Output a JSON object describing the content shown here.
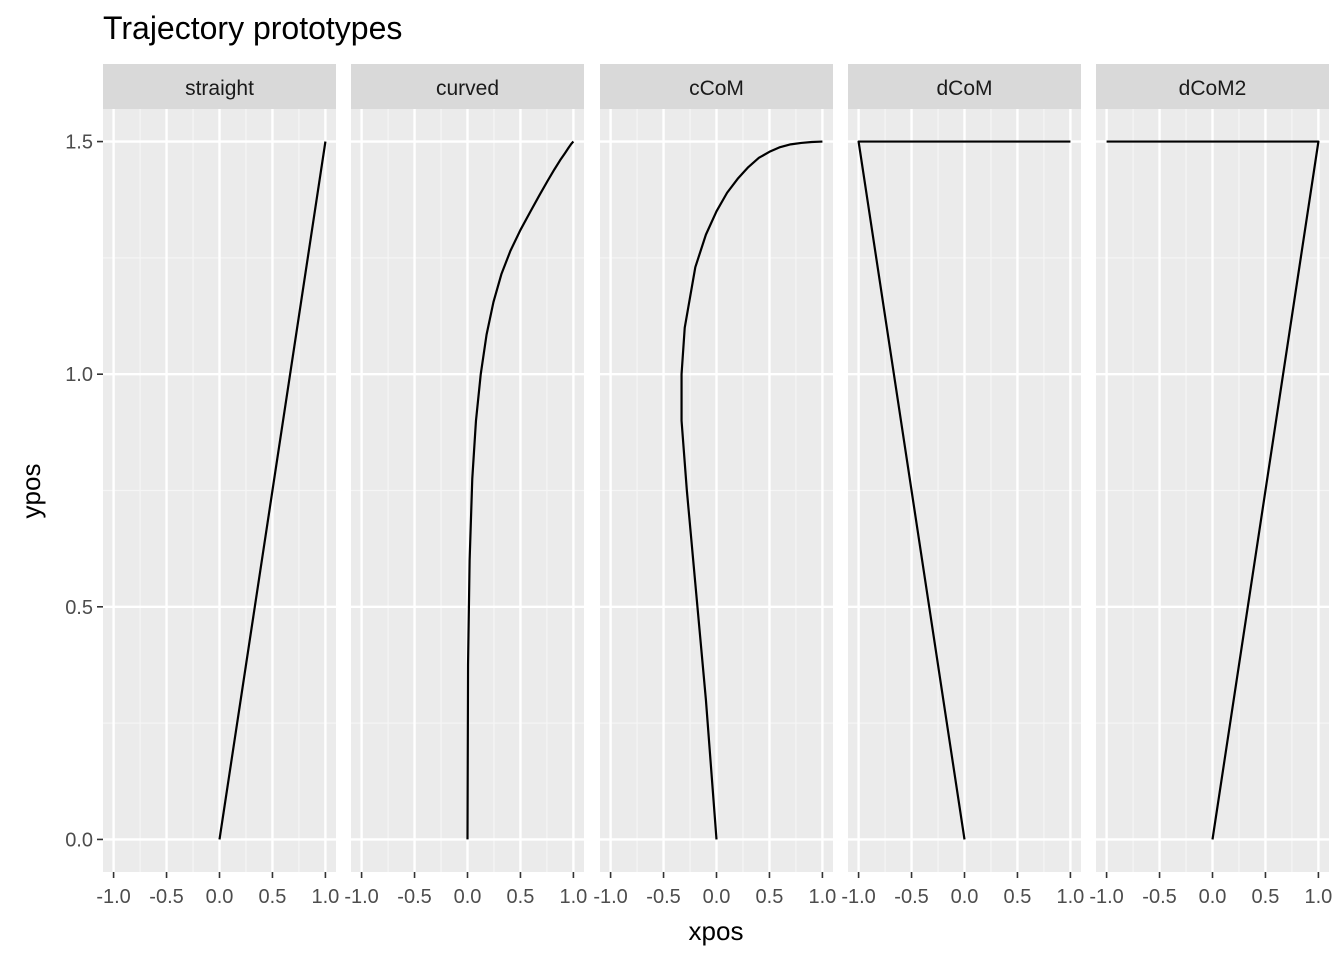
{
  "chart_data": {
    "type": "line",
    "title": "Trajectory prototypes",
    "xlabel": "xpos",
    "ylabel": "ypos",
    "xlim": [
      -1.1,
      1.1
    ],
    "ylim": [
      -0.07,
      1.57
    ],
    "x_ticks": [
      -1.0,
      -0.5,
      0.0,
      0.5,
      1.0
    ],
    "x_tick_labels": [
      "-1.0",
      "-0.5",
      "0.0",
      "0.5",
      "1.0"
    ],
    "y_ticks": [
      0.0,
      0.5,
      1.0,
      1.5
    ],
    "y_tick_labels": [
      "0.0",
      "0.5",
      "1.0",
      "1.5"
    ],
    "grid": true,
    "panels": [
      {
        "name": "straight",
        "x": [
          0.0,
          1.0
        ],
        "y": [
          0.0,
          1.5
        ]
      },
      {
        "name": "curved",
        "x": [
          0.0,
          0.005,
          0.02,
          0.045,
          0.08,
          0.125,
          0.18,
          0.245,
          0.32,
          0.405,
          0.5,
          0.595,
          0.68,
          0.755,
          0.82,
          0.875,
          0.92,
          0.955,
          0.98,
          0.995,
          1.0
        ],
        "y": [
          0.0,
          0.375,
          0.6,
          0.775,
          0.9,
          1.0,
          1.085,
          1.155,
          1.215,
          1.265,
          1.31,
          1.35,
          1.385,
          1.415,
          1.44,
          1.46,
          1.475,
          1.487,
          1.495,
          1.499,
          1.5
        ]
      },
      {
        "name": "cCoM",
        "x": [
          0.0,
          -0.1,
          -0.2,
          -0.28,
          -0.33,
          -0.33,
          -0.3,
          -0.2,
          -0.1,
          0.0,
          0.1,
          0.2,
          0.3,
          0.4,
          0.5,
          0.6,
          0.7,
          0.8,
          0.9,
          1.0
        ],
        "y": [
          0.0,
          0.3,
          0.55,
          0.75,
          0.9,
          1.0,
          1.1,
          1.23,
          1.3,
          1.35,
          1.39,
          1.42,
          1.445,
          1.465,
          1.478,
          1.488,
          1.494,
          1.497,
          1.499,
          1.5
        ]
      },
      {
        "name": "dCoM",
        "x": [
          0.0,
          -1.0,
          1.0
        ],
        "y": [
          0.0,
          1.5,
          1.5
        ]
      },
      {
        "name": "dCoM2",
        "x": [
          0.0,
          1.0,
          -1.0
        ],
        "y": [
          0.0,
          1.5,
          1.5
        ]
      }
    ]
  },
  "colors": {
    "panel_bg": "#ebebeb",
    "strip_bg": "#d9d9d9",
    "grid_major": "#ffffff",
    "grid_minor": "#f5f5f5",
    "line": "#000000",
    "tick_text": "#4d4d4d",
    "tick_mark": "#333333"
  }
}
